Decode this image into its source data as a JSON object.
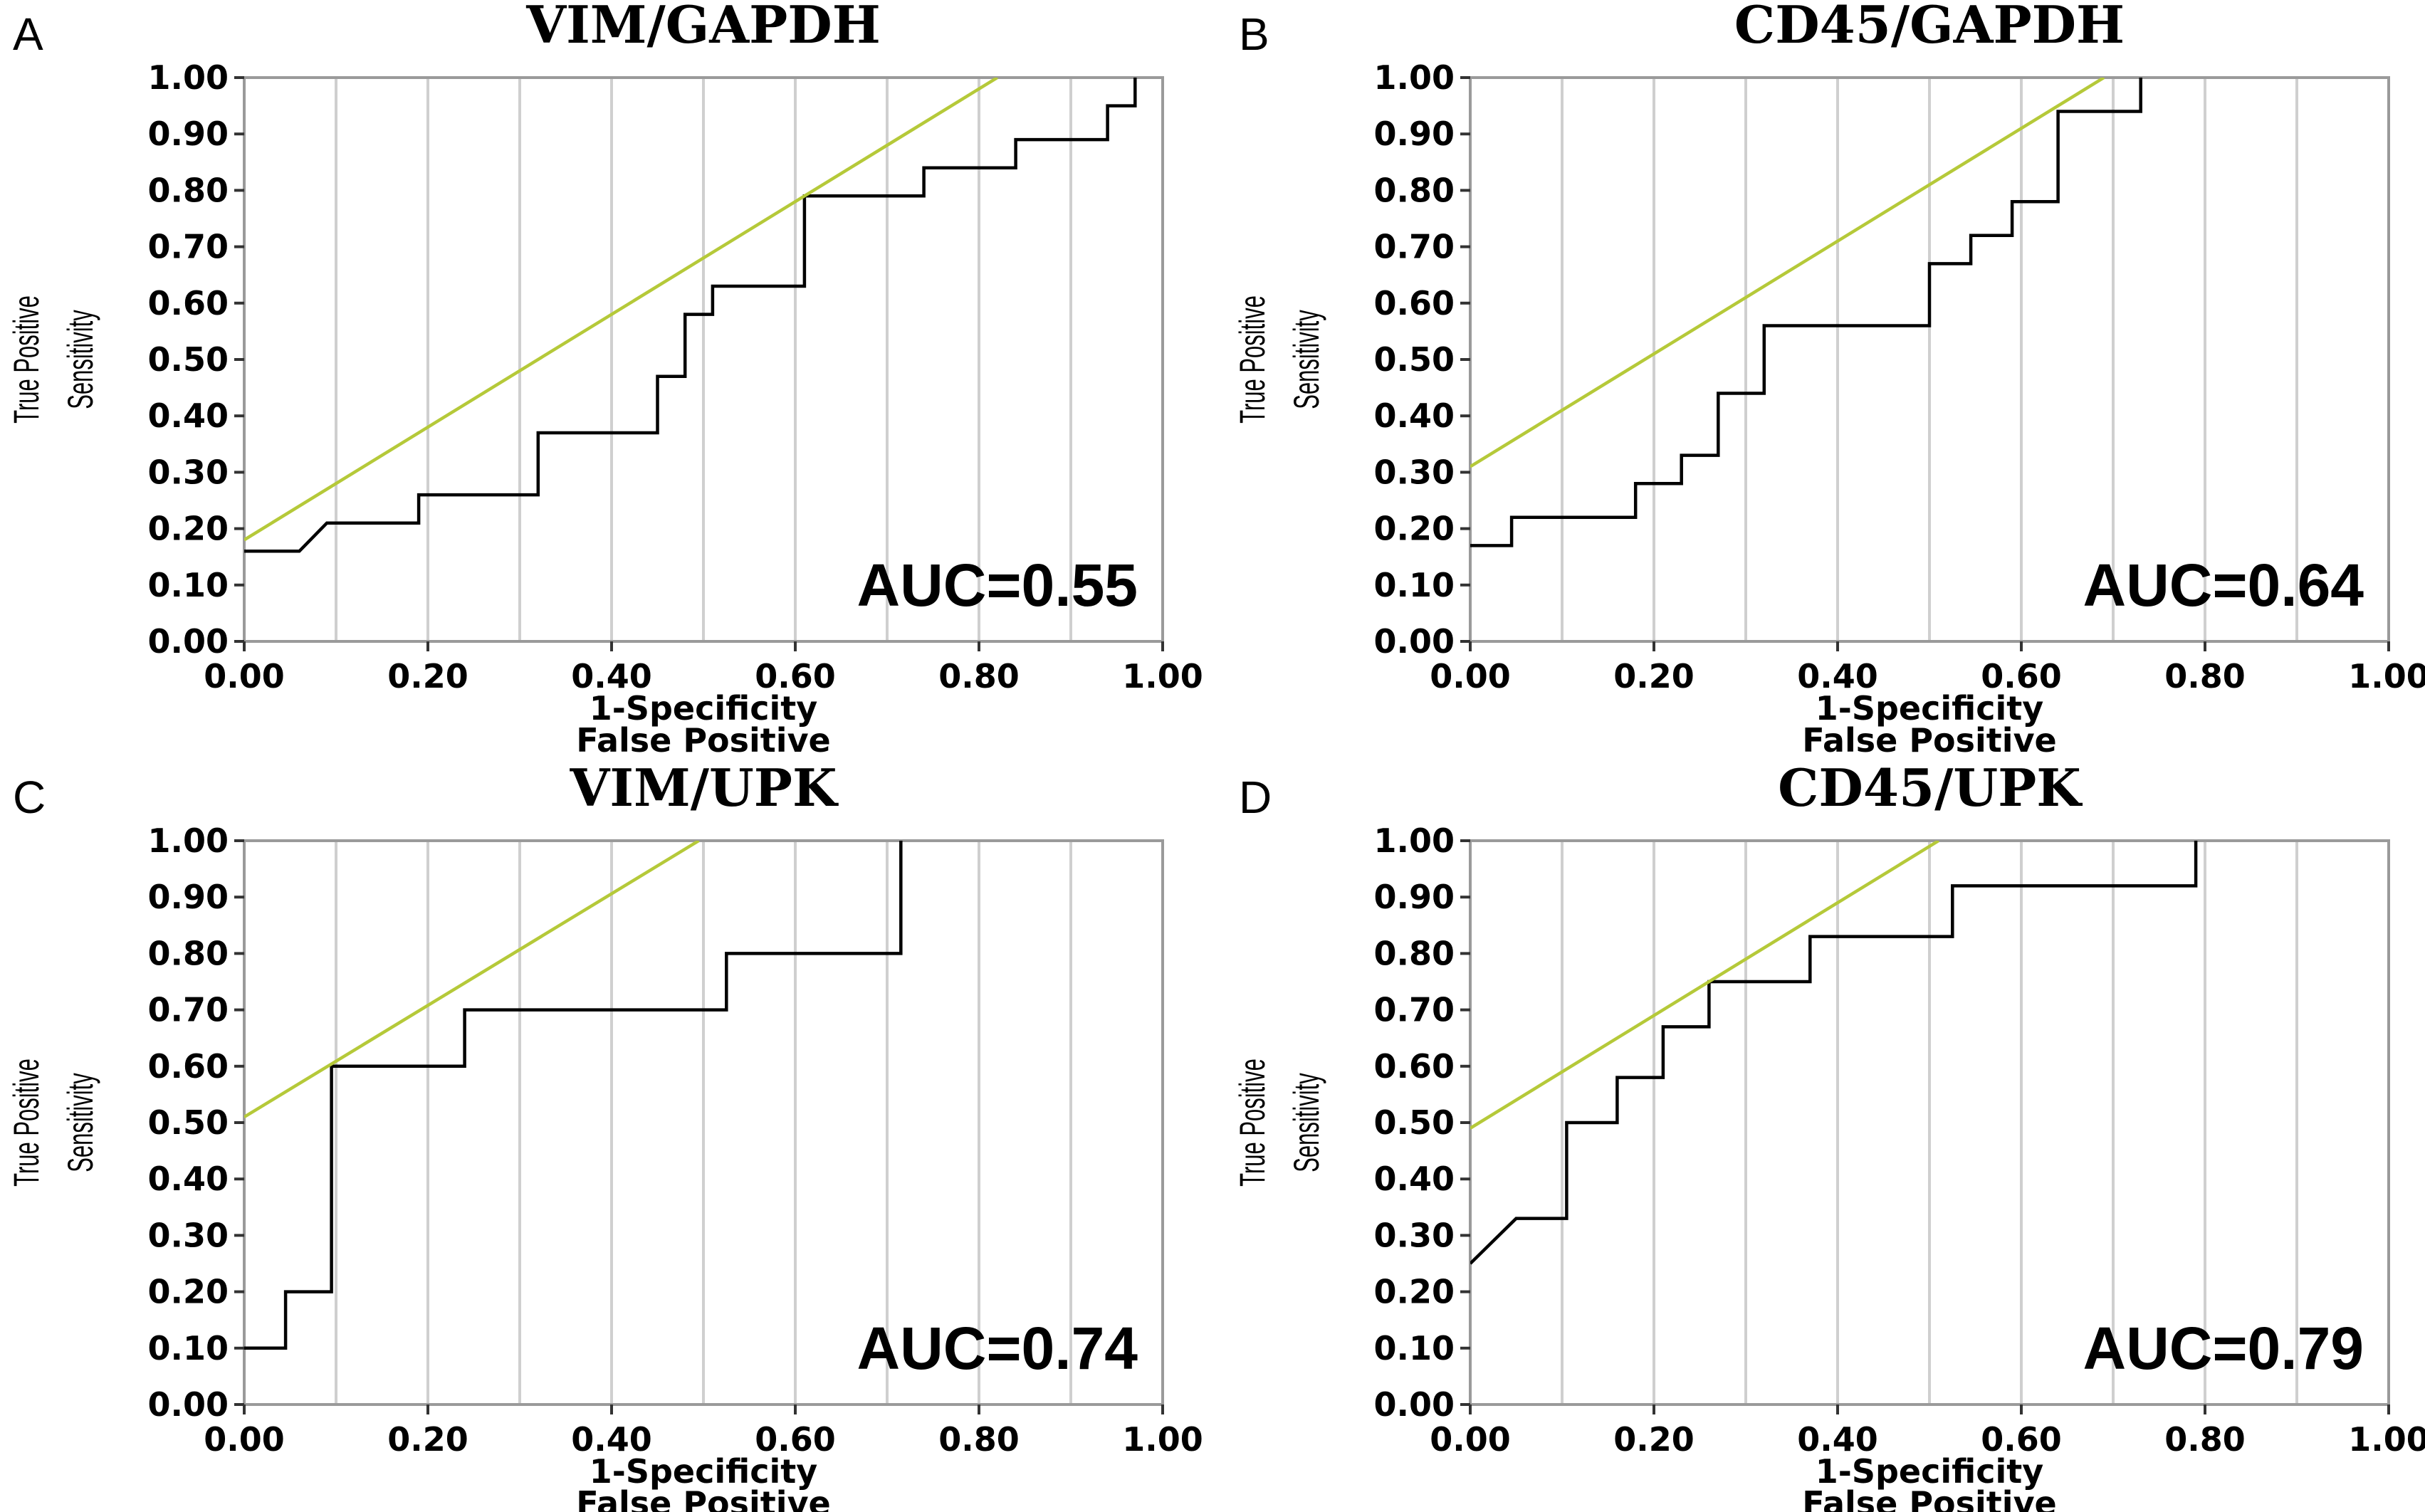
{
  "colors": {
    "roc_line": "#000000",
    "reference_line": "#b5c939",
    "grid": "#cfcfcf",
    "frame": "#9a9a9a"
  },
  "axis": {
    "x_ticks": [
      "0.00",
      "0.20",
      "0.40",
      "0.60",
      "0.80",
      "1.00"
    ],
    "y_ticks": [
      "0.00",
      "0.10",
      "0.20",
      "0.30",
      "0.40",
      "0.50",
      "0.60",
      "0.70",
      "0.80",
      "0.90",
      "1.00"
    ],
    "xlabel_line1": "1-Specificity",
    "xlabel_line2": "False Positive",
    "ylabel_line1": "True Positive",
    "ylabel_line2": "Sensitivity"
  },
  "chart_data": [
    {
      "type": "line",
      "panel": "A",
      "title": "VIM/GAPDH",
      "annotation": "AUC=0.55",
      "xlabel": "1-Specificity False Positive",
      "ylabel": "True Positive Sensitivity",
      "xlim": [
        0,
        1
      ],
      "ylim": [
        0,
        1
      ],
      "grid": true,
      "series": [
        {
          "role": "roc",
          "x": [
            0,
            0.06,
            0.09,
            0.09,
            0.19,
            0.19,
            0.32,
            0.32,
            0.45,
            0.45,
            0.48,
            0.48,
            0.51,
            0.51,
            0.61,
            0.61,
            0.74,
            0.74,
            0.84,
            0.84,
            0.94,
            0.94,
            0.97,
            0.97
          ],
          "y": [
            0.16,
            0.16,
            0.21,
            0.21,
            0.21,
            0.26,
            0.26,
            0.37,
            0.37,
            0.47,
            0.47,
            0.58,
            0.58,
            0.63,
            0.63,
            0.79,
            0.79,
            0.84,
            0.84,
            0.89,
            0.89,
            0.95,
            0.95,
            1.0
          ]
        },
        {
          "role": "reference",
          "x": [
            0,
            0.82
          ],
          "y": [
            0.18,
            1.0
          ]
        }
      ]
    },
    {
      "type": "line",
      "panel": "B",
      "title": "CD45/GAPDH",
      "annotation": "AUC=0.64",
      "xlabel": "1-Specificity False Positive",
      "ylabel": "True Positive Sensitivity",
      "xlim": [
        0,
        1
      ],
      "ylim": [
        0,
        1
      ],
      "grid": true,
      "series": [
        {
          "role": "roc",
          "x": [
            0,
            0.045,
            0.045,
            0.18,
            0.18,
            0.23,
            0.23,
            0.27,
            0.27,
            0.32,
            0.32,
            0.5,
            0.5,
            0.545,
            0.545,
            0.59,
            0.59,
            0.64,
            0.64,
            0.73,
            0.73
          ],
          "y": [
            0.17,
            0.17,
            0.22,
            0.22,
            0.28,
            0.28,
            0.33,
            0.33,
            0.44,
            0.44,
            0.56,
            0.56,
            0.67,
            0.67,
            0.72,
            0.72,
            0.78,
            0.78,
            0.94,
            0.94,
            1.0
          ]
        },
        {
          "role": "reference",
          "x": [
            0,
            0.69
          ],
          "y": [
            0.31,
            1.0
          ]
        }
      ]
    },
    {
      "type": "line",
      "panel": "C",
      "title": "VIM/UPK",
      "annotation": "AUC=0.74",
      "xlabel": "1-Specificity False Positive",
      "ylabel": "True Positive Sensitivity",
      "xlim": [
        0,
        1
      ],
      "ylim": [
        0,
        1
      ],
      "grid": true,
      "series": [
        {
          "role": "roc",
          "x": [
            0,
            0.045,
            0.045,
            0.095,
            0.095,
            0.24,
            0.24,
            0.525,
            0.525,
            0.715,
            0.715
          ],
          "y": [
            0.1,
            0.1,
            0.2,
            0.2,
            0.6,
            0.6,
            0.7,
            0.7,
            0.8,
            0.8,
            1.0
          ]
        },
        {
          "role": "reference",
          "x": [
            0,
            0.495
          ],
          "y": [
            0.51,
            1.0
          ]
        }
      ]
    },
    {
      "type": "line",
      "panel": "D",
      "title": "CD45/UPK",
      "annotation": "AUC=0.79",
      "xlabel": "1-Specificity False Positive",
      "ylabel": "True Positive Sensitivity",
      "xlim": [
        0,
        1
      ],
      "ylim": [
        0,
        1
      ],
      "grid": true,
      "series": [
        {
          "role": "roc",
          "x": [
            0,
            0.05,
            0.105,
            0.105,
            0.16,
            0.16,
            0.21,
            0.21,
            0.26,
            0.26,
            0.37,
            0.37,
            0.525,
            0.525,
            0.79,
            0.79
          ],
          "y": [
            0.25,
            0.33,
            0.33,
            0.5,
            0.5,
            0.58,
            0.58,
            0.67,
            0.67,
            0.75,
            0.75,
            0.83,
            0.83,
            0.92,
            0.92,
            1.0
          ]
        },
        {
          "role": "reference",
          "x": [
            0,
            0.51
          ],
          "y": [
            0.49,
            1.0
          ]
        }
      ]
    }
  ]
}
